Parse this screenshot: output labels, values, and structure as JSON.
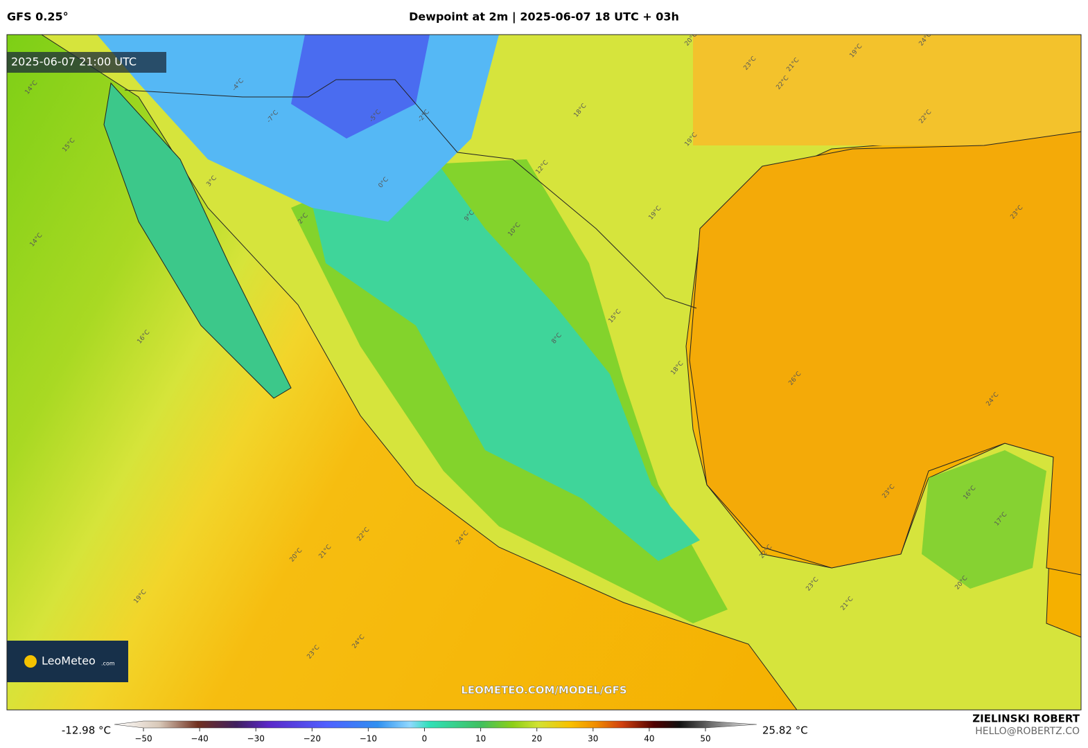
{
  "header": {
    "model": "GFS 0.25°",
    "title": "Dewpoint at 2m | 2025-06-07 18 UTC + 03h"
  },
  "map": {
    "timestamp": "2025-06-07 21:00 UTC",
    "watermark": "LEOMETEO.COM/MODEL/GFS",
    "logo": {
      "brand": "LeoMeteo",
      "suffix": ".com"
    },
    "contour_labels": [
      "14°C",
      "14°C",
      "15°C",
      "16°C",
      "18°C",
      "19°C",
      "19°C",
      "21°C",
      "22°C",
      "23°C",
      "23°C",
      "24°C",
      "26°C",
      "22°C",
      "21°C",
      "20°C",
      "19°C",
      "23°C",
      "24°C",
      "24°C",
      "23°C",
      "17°C",
      "16°C",
      "22°C",
      "23°C",
      "20°C",
      "19°C",
      "12°C",
      "10°C",
      "9°C",
      "8°C",
      "2°C",
      "3°C",
      "-7°C",
      "-4°C",
      "-5°C",
      "-2°C",
      "0°C",
      "24°C",
      "22°C",
      "20°C",
      "21°C",
      "18°C",
      "15°C"
    ]
  },
  "colorbar": {
    "min_label": "-12.98 °C",
    "max_label": "25.82 °C",
    "ticks": [
      {
        "value": -50,
        "label": "−50"
      },
      {
        "value": -40,
        "label": "−40"
      },
      {
        "value": -30,
        "label": "−30"
      },
      {
        "value": -20,
        "label": "−20"
      },
      {
        "value": -10,
        "label": "−10"
      },
      0,
      10,
      20,
      30,
      40,
      50
    ]
  },
  "footer": {
    "author": "ZIELINSKI ROBERT",
    "email": "HELLO@ROBERTZ.CO"
  }
}
